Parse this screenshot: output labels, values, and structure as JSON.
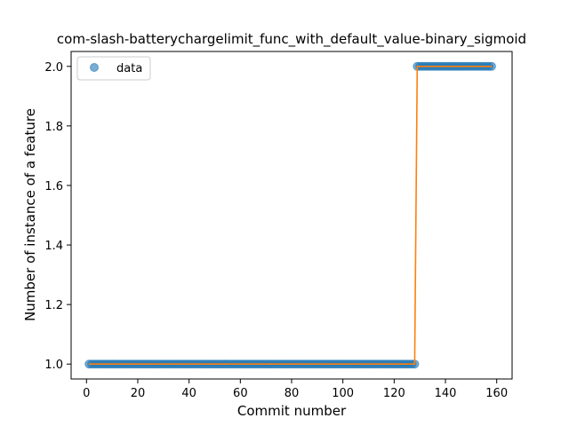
{
  "chart_data": {
    "type": "scatter",
    "title": "com-slash-batterychargelimit_func_with_default_value-binary_sigmoid",
    "xlabel": "Commit number",
    "ylabel": "Number of instance of a feature",
    "xlim": [
      -6,
      166
    ],
    "ylim": [
      0.95,
      2.05
    ],
    "xticks": [
      0,
      20,
      40,
      60,
      80,
      100,
      120,
      140,
      160
    ],
    "yticks": [
      1.0,
      1.2,
      1.4,
      1.6,
      1.8,
      2.0
    ],
    "ytick_labels": [
      "1.0",
      "1.2",
      "1.4",
      "1.6",
      "1.8",
      "2.0"
    ],
    "grid": false,
    "legend": {
      "position": "top-left",
      "entries": [
        "data"
      ]
    },
    "colors": {
      "data": "#1f77b4",
      "fit": "#ff7f0e"
    },
    "series": [
      {
        "name": "data",
        "kind": "points",
        "segments": [
          {
            "x_start": 1,
            "x_end": 128,
            "y": 1.0
          },
          {
            "x_start": 129,
            "x_end": 158,
            "y": 2.0
          }
        ]
      },
      {
        "kind": "line",
        "x": [
          1,
          128,
          129,
          158
        ],
        "y": [
          1.0,
          1.0,
          2.0,
          2.0
        ]
      }
    ]
  }
}
